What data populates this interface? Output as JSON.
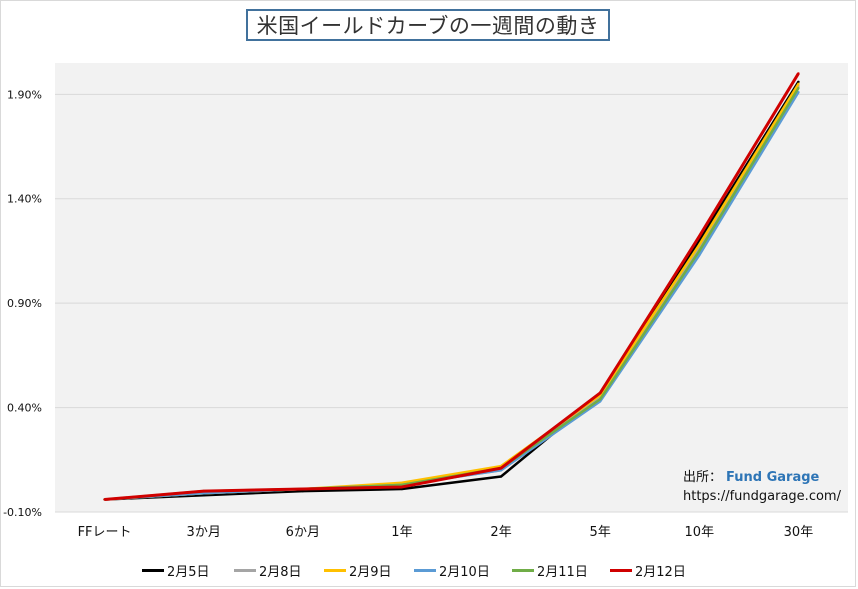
{
  "chart_data": {
    "type": "line",
    "title": "米国イールドカーブの一週間の動き",
    "categories": [
      "FFレート",
      "3か月",
      "6か月",
      "1年",
      "2年",
      "5年",
      "10年",
      "30年"
    ],
    "ylim": [
      -0.1,
      2.05
    ],
    "yticks": [
      "-0.10%",
      "0.40%",
      "0.90%",
      "1.40%",
      "1.90%"
    ],
    "ytick_values": [
      -0.1,
      0.4,
      0.9,
      1.4,
      1.9
    ],
    "grid": true,
    "legend_position": "bottom",
    "series": [
      {
        "name": "2月5日",
        "color": "#000000",
        "values": [
          -0.04,
          -0.02,
          0.0,
          0.01,
          0.07,
          0.46,
          1.2,
          1.96
        ]
      },
      {
        "name": "2月8日",
        "color": "#a5a5a5",
        "values": [
          -0.04,
          -0.01,
          0.01,
          0.03,
          0.1,
          0.45,
          1.17,
          1.94
        ]
      },
      {
        "name": "2月9日",
        "color": "#ffc000",
        "values": [
          -0.04,
          -0.01,
          0.01,
          0.04,
          0.12,
          0.46,
          1.18,
          1.95
        ]
      },
      {
        "name": "2月10日",
        "color": "#5b9bd5",
        "values": [
          -0.04,
          -0.01,
          0.01,
          0.03,
          0.1,
          0.43,
          1.13,
          1.91
        ]
      },
      {
        "name": "2月11日",
        "color": "#70ad47",
        "values": [
          -0.04,
          0.0,
          0.01,
          0.03,
          0.11,
          0.44,
          1.15,
          1.93
        ]
      },
      {
        "name": "2月12日",
        "color": "#d00000",
        "values": [
          -0.04,
          0.0,
          0.01,
          0.02,
          0.11,
          0.47,
          1.22,
          2.0
        ]
      }
    ]
  },
  "source": {
    "label": "出所：",
    "name": "Fund Garage",
    "url": "https://fundgarage.com/"
  }
}
